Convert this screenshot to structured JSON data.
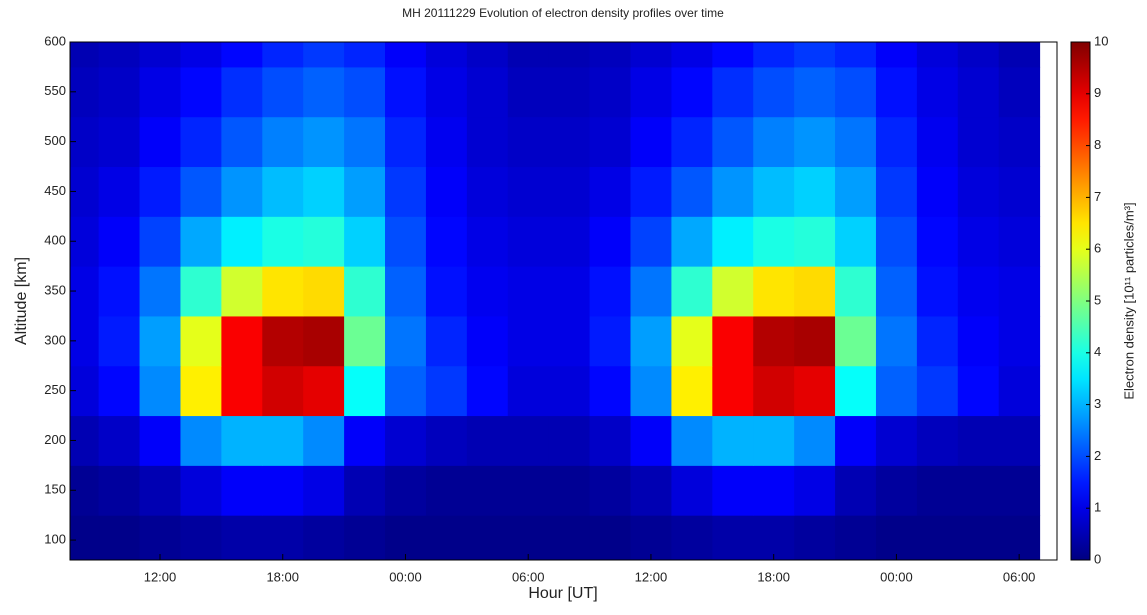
{
  "chart_data": {
    "type": "heatmap",
    "title": "MH 20111229 Evolution of electron density profiles over time",
    "xlabel": "Hour [UT]",
    "ylabel": "Altitude [km]",
    "colorbar_label": "Electron density [10¹¹ particles/m³]",
    "colormap": "jet",
    "x": [
      8,
      10,
      12,
      14,
      16,
      18,
      20,
      22,
      24,
      26,
      28,
      30,
      32,
      34,
      36,
      38,
      40,
      42,
      44,
      46,
      48,
      50,
      52,
      54
    ],
    "y": [
      100,
      150,
      200,
      250,
      300,
      350,
      400,
      450,
      500,
      550,
      600
    ],
    "z": [
      [
        0.1,
        0.1,
        0.2,
        0.3,
        0.4,
        0.4,
        0.3,
        0.2,
        0.1,
        0.1,
        0.1,
        0.1,
        0.1,
        0.1,
        0.2,
        0.3,
        0.4,
        0.4,
        0.3,
        0.2,
        0.1,
        0.1,
        0.1,
        0.1
      ],
      [
        0.2,
        0.3,
        0.5,
        0.9,
        1.2,
        1.2,
        1.0,
        0.5,
        0.3,
        0.2,
        0.2,
        0.2,
        0.2,
        0.3,
        0.5,
        0.9,
        1.2,
        1.2,
        1.0,
        0.5,
        0.3,
        0.2,
        0.2,
        0.2
      ],
      [
        0.5,
        0.7,
        1.2,
        2.6,
        3.0,
        3.0,
        2.6,
        1.2,
        0.8,
        0.6,
        0.5,
        0.5,
        0.5,
        0.7,
        1.2,
        2.6,
        3.0,
        3.0,
        2.6,
        1.2,
        0.8,
        0.6,
        0.5,
        0.5
      ],
      [
        0.9,
        1.3,
        2.6,
        6.4,
        8.8,
        9.2,
        9.0,
        3.8,
        2.2,
        1.8,
        1.3,
        0.9,
        0.9,
        1.3,
        2.6,
        6.4,
        8.8,
        9.2,
        9.0,
        3.8,
        2.2,
        1.8,
        1.3,
        0.9
      ],
      [
        1.0,
        1.5,
        2.8,
        6.0,
        8.8,
        9.5,
        9.6,
        4.8,
        2.4,
        1.6,
        1.2,
        1.0,
        1.0,
        1.5,
        2.8,
        6.0,
        8.8,
        9.5,
        9.6,
        4.8,
        2.4,
        1.6,
        1.2,
        1.0
      ],
      [
        1.0,
        1.4,
        2.4,
        4.2,
        5.8,
        6.5,
        6.6,
        4.2,
        2.2,
        1.4,
        1.1,
        1.0,
        1.0,
        1.4,
        2.4,
        4.2,
        5.8,
        6.5,
        6.6,
        4.2,
        2.2,
        1.4,
        1.1,
        1.0
      ],
      [
        0.9,
        1.2,
        1.9,
        2.9,
        3.6,
        4.0,
        4.1,
        3.3,
        2.0,
        1.3,
        1.0,
        0.9,
        0.9,
        1.2,
        1.9,
        2.9,
        3.6,
        4.0,
        4.1,
        3.3,
        2.0,
        1.3,
        1.0,
        0.9
      ],
      [
        0.8,
        1.0,
        1.5,
        2.1,
        2.7,
        3.1,
        3.3,
        2.8,
        1.8,
        1.2,
        0.9,
        0.8,
        0.8,
        1.0,
        1.5,
        2.1,
        2.7,
        3.1,
        3.3,
        2.8,
        1.8,
        1.2,
        0.9,
        0.8
      ],
      [
        0.7,
        0.8,
        1.2,
        1.6,
        2.1,
        2.5,
        2.7,
        2.4,
        1.6,
        1.1,
        0.8,
        0.7,
        0.7,
        0.8,
        1.2,
        1.6,
        2.1,
        2.5,
        2.7,
        2.4,
        1.6,
        1.1,
        0.8,
        0.7
      ],
      [
        0.6,
        0.7,
        1.0,
        1.3,
        1.7,
        2.0,
        2.2,
        2.0,
        1.4,
        1.0,
        0.8,
        0.6,
        0.6,
        0.7,
        1.0,
        1.3,
        1.7,
        2.0,
        2.2,
        2.0,
        1.4,
        1.0,
        0.8,
        0.6
      ],
      [
        0.5,
        0.6,
        0.8,
        1.0,
        1.3,
        1.6,
        1.8,
        1.6,
        1.2,
        0.9,
        0.7,
        0.5,
        0.5,
        0.6,
        0.8,
        1.0,
        1.3,
        1.6,
        1.8,
        1.6,
        1.2,
        0.9,
        0.7,
        0.5
      ]
    ],
    "xlim": [
      7.6,
      55.85
    ],
    "xticks": [
      {
        "value": 12,
        "label": "12:00"
      },
      {
        "value": 18,
        "label": "18:00"
      },
      {
        "value": 24,
        "label": "00:00"
      },
      {
        "value": 30,
        "label": "06:00"
      },
      {
        "value": 36,
        "label": "12:00"
      },
      {
        "value": 42,
        "label": "18:00"
      },
      {
        "value": 48,
        "label": "00:00"
      },
      {
        "value": 54,
        "label": "06:00"
      }
    ],
    "ylim": [
      80,
      600
    ],
    "yticks": [
      100,
      150,
      200,
      250,
      300,
      350,
      400,
      450,
      500,
      550,
      600
    ],
    "zlim": [
      0,
      10
    ],
    "zticks": [
      0,
      1,
      2,
      3,
      4,
      5,
      6,
      7,
      8,
      9,
      10
    ]
  }
}
